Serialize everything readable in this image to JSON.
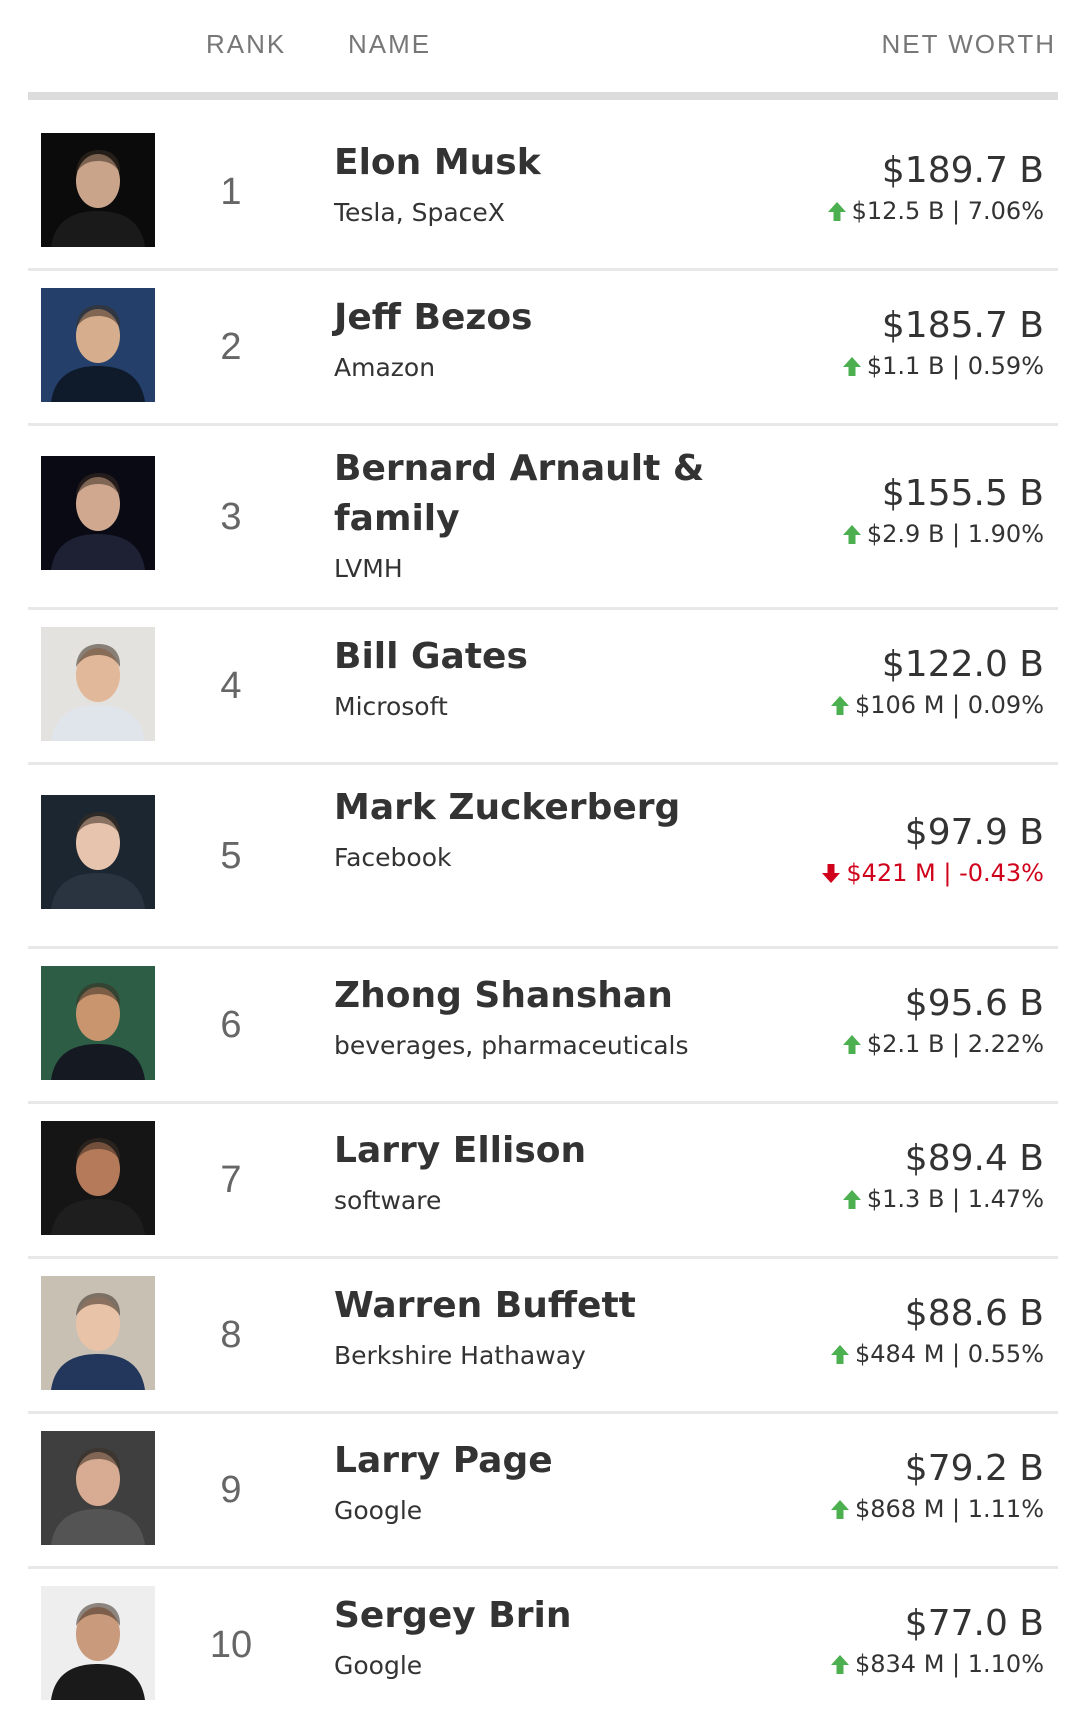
{
  "header": {
    "rank_label": "RANK",
    "name_label": "NAME",
    "net_worth_label": "NET WORTH"
  },
  "colors": {
    "up": "#4caf50",
    "down": "#d0021b",
    "divider": "#dcdcdc"
  },
  "people": [
    {
      "rank": "1",
      "name": "Elon Musk",
      "source": "Tesla, SpaceX",
      "net_worth": "$189.7 B",
      "change": "$12.5 B | 7.06%",
      "direction": "up",
      "tall": false
    },
    {
      "rank": "2",
      "name": "Jeff Bezos",
      "source": "Amazon",
      "net_worth": "$185.7 B",
      "change": "$1.1 B | 0.59%",
      "direction": "up",
      "tall": false
    },
    {
      "rank": "3",
      "name": "Bernard Arnault & family",
      "source": "LVMH",
      "net_worth": "$155.5 B",
      "change": "$2.9 B | 1.90%",
      "direction": "up",
      "tall": true
    },
    {
      "rank": "4",
      "name": "Bill Gates",
      "source": "Microsoft",
      "net_worth": "$122.0 B",
      "change": "$106 M | 0.09%",
      "direction": "up",
      "tall": false
    },
    {
      "rank": "5",
      "name": "Mark Zuckerberg",
      "source": "Facebook",
      "net_worth": "$97.9 B",
      "change": "$421 M | -0.43%",
      "direction": "down",
      "tall": true
    },
    {
      "rank": "6",
      "name": "Zhong Shanshan",
      "source": "beverages, pharmaceuticals",
      "net_worth": "$95.6 B",
      "change": "$2.1 B | 2.22%",
      "direction": "up",
      "tall": false
    },
    {
      "rank": "7",
      "name": "Larry Ellison",
      "source": "software",
      "net_worth": "$89.4 B",
      "change": "$1.3 B | 1.47%",
      "direction": "up",
      "tall": false
    },
    {
      "rank": "8",
      "name": "Warren Buffett",
      "source": "Berkshire Hathaway",
      "net_worth": "$88.6 B",
      "change": "$484 M | 0.55%",
      "direction": "up",
      "tall": false
    },
    {
      "rank": "9",
      "name": "Larry Page",
      "source": "Google",
      "net_worth": "$79.2 B",
      "change": "$868 M | 1.11%",
      "direction": "up",
      "tall": false
    },
    {
      "rank": "10",
      "name": "Sergey Brin",
      "source": "Google",
      "net_worth": "$77.0 B",
      "change": "$834 M | 1.10%",
      "direction": "up",
      "tall": false
    }
  ]
}
